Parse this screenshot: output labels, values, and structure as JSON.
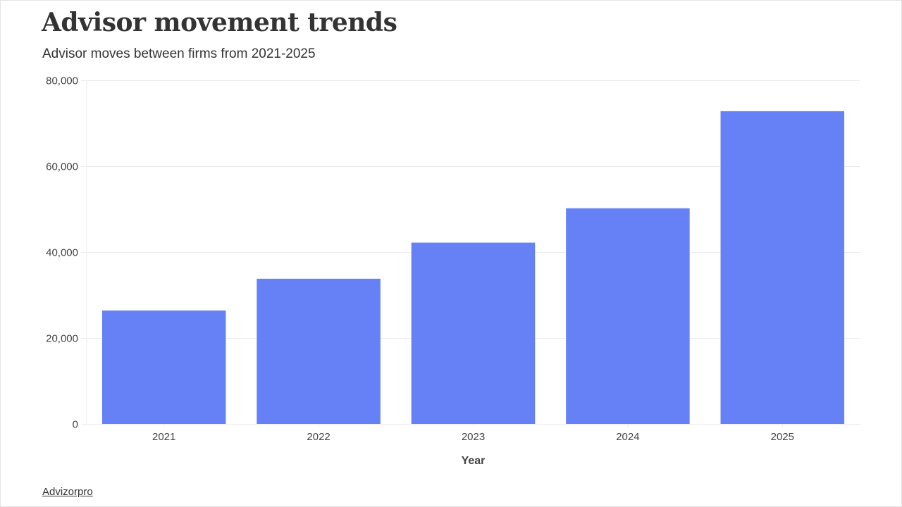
{
  "title": "Advisor movement trends",
  "subtitle": "Advisor moves between firms from 2021-2025",
  "source_label": "Advizorpro",
  "colors": {
    "bar": "#6681f6",
    "grid": "#ececec",
    "text": "#333333"
  },
  "chart_data": {
    "type": "bar",
    "categories": [
      "2021",
      "2022",
      "2023",
      "2024",
      "2025"
    ],
    "values": [
      26400,
      33800,
      42200,
      50200,
      72800
    ],
    "xlabel": "Year",
    "ylabel": "",
    "ylim": [
      0,
      80000
    ],
    "yticks": [
      0,
      20000,
      40000,
      60000,
      80000
    ],
    "ytick_labels": [
      "0",
      "20,000",
      "40,000",
      "60,000",
      "80,000"
    ],
    "grid": true,
    "legend": "none"
  }
}
